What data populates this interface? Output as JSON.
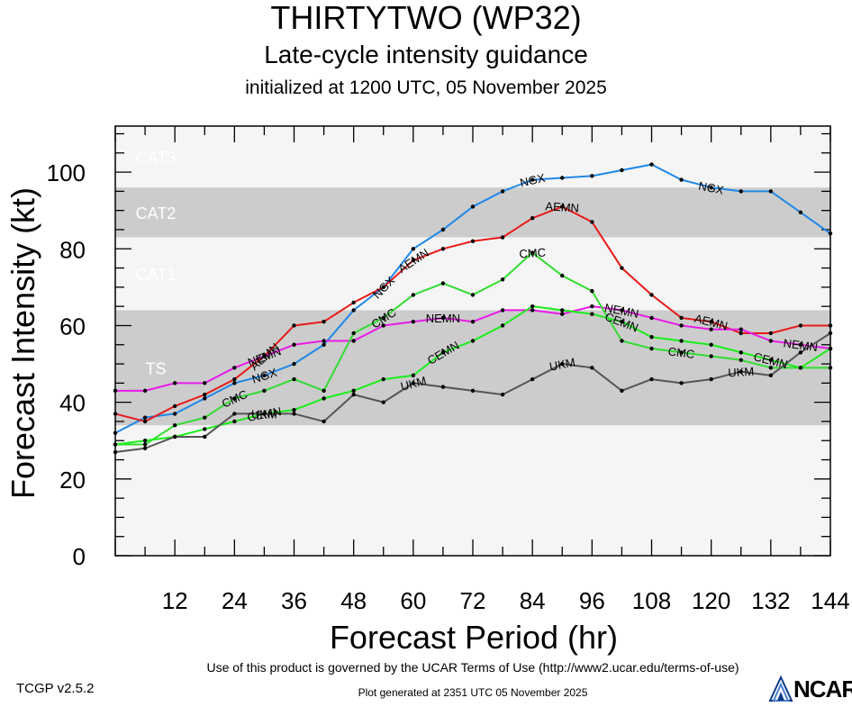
{
  "header": {
    "title": "THIRTYTWO (WP32)",
    "subtitle": "Late-cycle intensity guidance",
    "subtitle2": "initialized at 1200 UTC, 05 November 2025"
  },
  "footer": {
    "terms": "Use of this product is governed by the UCAR Terms of Use (http://www2.ucar.edu/terms-of-use)",
    "version": "TCGP v2.5.2",
    "generated": "Plot generated at 2351 UTC   05 November 2025",
    "logo": "NCAR"
  },
  "chart_data": {
    "type": "line",
    "xlabel": "Forecast Period (hr)",
    "ylabel": "Forecast Intensity (kt)",
    "xlim": [
      0,
      144
    ],
    "ylim": [
      0,
      112
    ],
    "xticks": [
      12,
      24,
      36,
      48,
      60,
      72,
      84,
      96,
      108,
      120,
      132,
      144
    ],
    "yticks": [
      0,
      20,
      40,
      60,
      80,
      100
    ],
    "bands": [
      {
        "label": "TS",
        "from": 34,
        "to": 64,
        "color": "#cccccc"
      },
      {
        "label": "CAT1",
        "from": 64,
        "to": 83,
        "color": "#f5f5f5"
      },
      {
        "label": "CAT2",
        "from": 83,
        "to": 96,
        "color": "#cccccc"
      },
      {
        "label": "CAT3",
        "from": 96,
        "to": 112,
        "color": "#f5f5f5"
      }
    ],
    "series": [
      {
        "name": "NGX",
        "color": "#1f88e8",
        "x": [
          0,
          6,
          12,
          18,
          24,
          30,
          36,
          42,
          48,
          54,
          60,
          66,
          72,
          78,
          84,
          90,
          96,
          102,
          108,
          114,
          120,
          126,
          132,
          138,
          144
        ],
        "y": [
          32,
          36,
          37,
          41,
          45,
          47,
          50,
          55,
          64,
          70,
          80,
          85,
          91,
          95,
          98,
          98.5,
          99,
          100.5,
          102,
          98,
          96,
          95,
          95,
          89.5,
          84
        ],
        "label_x": [
          30,
          54,
          84,
          120
        ]
      },
      {
        "name": "AEMN",
        "color": "#e81a1a",
        "x": [
          0,
          6,
          12,
          18,
          24,
          30,
          36,
          42,
          48,
          54,
          60,
          66,
          72,
          78,
          84,
          90,
          96,
          102,
          108,
          114,
          120,
          126,
          132,
          138,
          144
        ],
        "y": [
          37,
          35,
          39,
          42,
          46,
          52,
          60,
          61,
          66,
          70,
          77,
          80,
          82,
          83,
          88,
          91,
          87,
          75,
          68,
          62,
          61,
          58,
          58,
          60,
          60
        ],
        "label_x": [
          30,
          60,
          90,
          120
        ]
      },
      {
        "name": "NEMN",
        "color": "#e81ae8",
        "x": [
          0,
          6,
          12,
          18,
          24,
          30,
          36,
          42,
          48,
          54,
          60,
          66,
          72,
          78,
          84,
          90,
          96,
          102,
          108,
          114,
          120,
          126,
          132,
          138,
          144
        ],
        "y": [
          43,
          43,
          45,
          45,
          49,
          52,
          55,
          56,
          56,
          60,
          61,
          62,
          61,
          64,
          64,
          63,
          65,
          64,
          62,
          60,
          59,
          59,
          56,
          55,
          54
        ],
        "label_x": [
          30,
          66,
          102,
          138
        ]
      },
      {
        "name": "CMC",
        "color": "#32dc32",
        "x": [
          0,
          6,
          12,
          18,
          24,
          30,
          36,
          42,
          48,
          54,
          60,
          66,
          72,
          78,
          84,
          90,
          96,
          102,
          108,
          114,
          120,
          126,
          132,
          138,
          144
        ],
        "y": [
          29,
          29,
          34,
          36,
          41,
          43,
          46,
          43,
          58,
          62,
          68,
          71,
          68,
          72,
          79,
          73,
          69,
          56,
          54,
          53,
          52,
          51,
          49,
          49,
          49
        ],
        "label_x": [
          24,
          54,
          84,
          114
        ]
      },
      {
        "name": "CEMN",
        "color": "#1aee1a",
        "x": [
          0,
          6,
          12,
          18,
          24,
          30,
          36,
          42,
          48,
          54,
          60,
          66,
          72,
          78,
          84,
          90,
          96,
          102,
          108,
          114,
          120,
          126,
          132,
          138,
          144
        ],
        "y": [
          29,
          30,
          31,
          33,
          35,
          37,
          38,
          41,
          43,
          46,
          47,
          53,
          56,
          60,
          65,
          64,
          63,
          61,
          57,
          56,
          55,
          53,
          51,
          49,
          54
        ],
        "label_x": [
          30,
          66,
          102,
          132
        ]
      },
      {
        "name": "UKM",
        "color": "#555555",
        "x": [
          0,
          6,
          12,
          18,
          24,
          30,
          36,
          42,
          48,
          54,
          60,
          66,
          72,
          78,
          84,
          90,
          96,
          102,
          108,
          114,
          120,
          126,
          132,
          138,
          144
        ],
        "y": [
          27,
          28,
          31,
          31,
          37,
          37,
          37,
          35,
          42,
          40,
          45,
          44,
          43,
          42,
          46,
          50,
          49,
          43,
          46,
          45,
          46,
          48,
          47,
          53,
          58
        ],
        "label_x": [
          30,
          60,
          90,
          126
        ]
      }
    ]
  }
}
